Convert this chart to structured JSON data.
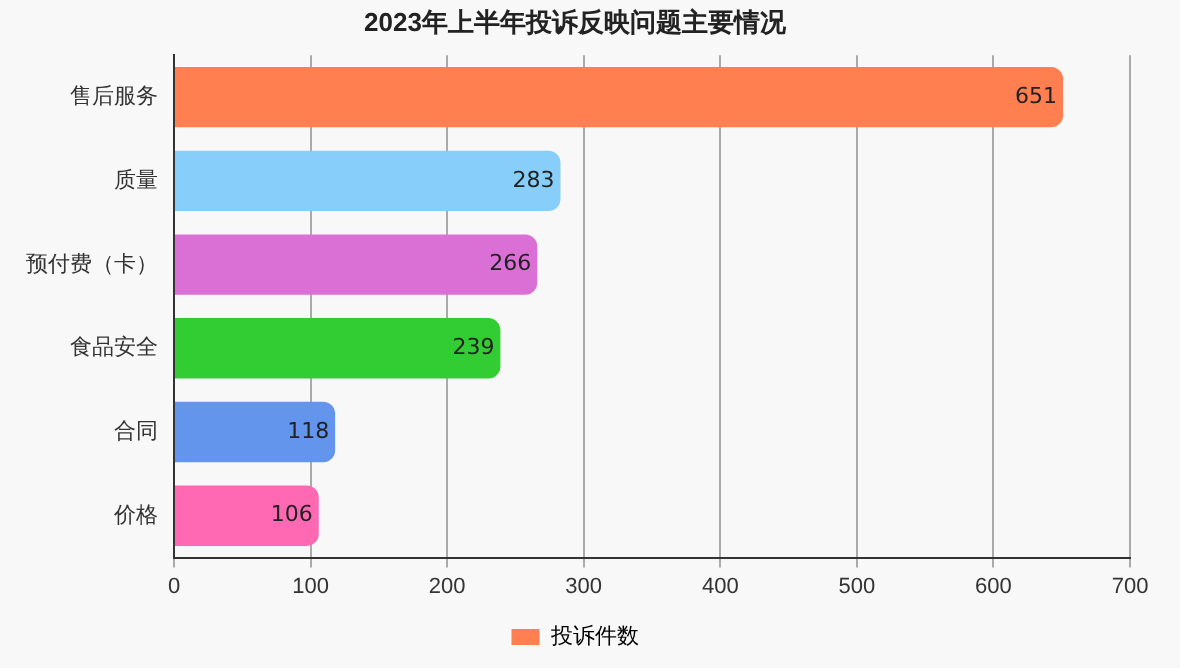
{
  "chart_data": {
    "type": "bar",
    "orientation": "horizontal",
    "title": "2023年上半年投诉反映问题主要情况",
    "categories": [
      "售后服务",
      "质量",
      "预付费（卡）",
      "食品安全",
      "合同",
      "价格"
    ],
    "series": [
      {
        "name": "投诉件数",
        "color": "#ff7f50",
        "colors": [
          "#ff7f50",
          "#87cefa",
          "#da70d6",
          "#32cd32",
          "#6495ed",
          "#ff69b4"
        ],
        "values": [
          651,
          283,
          266,
          239,
          118,
          106
        ]
      }
    ],
    "xlim": [
      0,
      700
    ],
    "xticks": [
      0,
      100,
      200,
      300,
      400,
      500,
      600,
      700
    ],
    "grid": "x",
    "legend": "bottom",
    "data_labels": true
  }
}
